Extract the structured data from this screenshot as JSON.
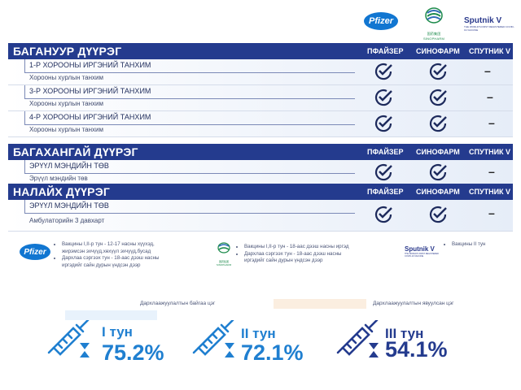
{
  "logos": {
    "pfizer": "Pfizer",
    "sinopharm": "国药集团 SINOPHARM",
    "sputnik": "Sputnik V",
    "sputnik_sub": "THE WORLD'S FIRST REGISTERED COVID-19 VACCINE"
  },
  "vaccines": [
    "ПФАЙЗЕР",
    "СИНОФАРМ",
    "СПУТНИК V"
  ],
  "districts": [
    {
      "name": "БАГАНУУР ДҮҮРЭГ",
      "facilities": [
        {
          "name": "1-Р ХОРООНЫ ИРГЭНИЙ ТАНХИМ",
          "location": "Хорооны хурлын танхим",
          "pfizer": true,
          "sinopharm": true,
          "sputnik": false
        },
        {
          "name": "3-Р ХОРООНЫ ИРГЭНИЙ ТАНХИМ",
          "location": "Хорооны хурлын  танхим",
          "pfizer": true,
          "sinopharm": true,
          "sputnik": false
        },
        {
          "name": "4-Р ХОРООНЫ ИРГЭНИЙ ТАНХИМ",
          "location": "Хорооны хурлын танхим",
          "pfizer": true,
          "sinopharm": true,
          "sputnik": false
        }
      ]
    },
    {
      "name": "БАГАХАНГАЙ ДҮҮРЭГ",
      "facilities": [
        {
          "name": "ЭРҮҮЛ МЭНДИЙН ТӨВ",
          "location": "Эрүүл мэндийн төв",
          "pfizer": true,
          "sinopharm": true,
          "sputnik": false
        }
      ]
    },
    {
      "name": "НАЛАЙХ ДҮҮРЭГ",
      "facilities": [
        {
          "name": "ЭРҮҮЛ МЭНДИЙН ТӨВ",
          "location": "Амбулаторийн 3 давхарт",
          "pfizer": true,
          "sinopharm": true,
          "sputnik": false
        }
      ]
    }
  ],
  "notes": {
    "pfizer": [
      "Вакцины I,II-р тун - 12-17 насны хүүхэд, жирэмсэн эхчүүд,хөхүүл эхчүүд,бусад",
      "Дархлаа сэргээх тун - 18-аас дээш насны иргэдийг сайн дурын үндсэн дээр"
    ],
    "sinopharm": [
      "Вакцины I,II-р тун - 18-аас дээш насны иргэд",
      "Дархлаа сэргээх тун - 18-аас дээш насны иргэдийг сайн дурын үндсэн дээр"
    ],
    "sputnik": [
      "Вакцины II тун"
    ]
  },
  "legend": {
    "coverage_label": "Дархлаажуулалтын байгаа цэг",
    "progress_label": "Дархлаажуулалтын явуулсан цэг"
  },
  "doses": [
    {
      "label": "I тун",
      "value": "75.2%",
      "color": "#1f7fd0"
    },
    {
      "label": "II тун",
      "value": "72.1%",
      "color": "#1f7fd0"
    },
    {
      "label": "III тун",
      "value": "54.1%",
      "color": "#243b8e"
    }
  ]
}
